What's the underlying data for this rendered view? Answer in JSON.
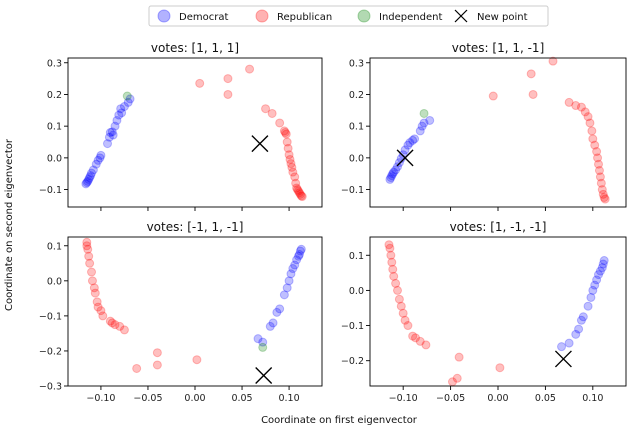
{
  "figure": {
    "xlabel": "Coordinate on first eigenvector",
    "ylabel": "Coordinate on second eigenvector",
    "legend": [
      {
        "name": "Democrat",
        "color": "#0000ff",
        "marker": "circle"
      },
      {
        "name": "Republican",
        "color": "#ff0000",
        "marker": "circle"
      },
      {
        "name": "Independent",
        "color": "#008000",
        "marker": "circle"
      },
      {
        "name": "New point",
        "color": "#000000",
        "marker": "x"
      }
    ],
    "legend_position": "top-center"
  },
  "chart_data": [
    {
      "type": "scatter",
      "title": "votes: [1, 1, 1]",
      "xlim": [
        -0.135,
        0.135
      ],
      "ylim": [
        -0.155,
        0.315
      ],
      "xticks": [],
      "yticks": [
        -0.1,
        0.0,
        0.1,
        0.2,
        0.3
      ],
      "ytick_labels": [
        "−0.1",
        "0.0",
        "0.1",
        "0.2",
        "0.3"
      ],
      "grid": false,
      "series": [
        {
          "name": "Democrat",
          "color": "#0000ff",
          "points": [
            [
              -0.116,
              -0.082
            ],
            [
              -0.115,
              -0.078
            ],
            [
              -0.114,
              -0.074
            ],
            [
              -0.113,
              -0.068
            ],
            [
              -0.112,
              -0.062
            ],
            [
              -0.111,
              -0.056
            ],
            [
              -0.11,
              -0.048
            ],
            [
              -0.108,
              -0.038
            ],
            [
              -0.105,
              -0.02
            ],
            [
              -0.103,
              -0.008
            ],
            [
              -0.101,
              0.0
            ],
            [
              -0.1,
              0.008
            ],
            [
              -0.093,
              0.045
            ],
            [
              -0.091,
              0.065
            ],
            [
              -0.09,
              0.08
            ],
            [
              -0.088,
              0.082
            ],
            [
              -0.087,
              0.072
            ],
            [
              -0.085,
              0.1
            ],
            [
              -0.083,
              0.118
            ],
            [
              -0.081,
              0.135
            ],
            [
              -0.079,
              0.155
            ],
            [
              -0.078,
              0.142
            ],
            [
              -0.075,
              0.162
            ],
            [
              -0.071,
              0.175
            ],
            [
              -0.069,
              0.186
            ]
          ]
        },
        {
          "name": "Republican",
          "color": "#ff0000",
          "points": [
            [
              0.005,
              0.235
            ],
            [
              0.035,
              0.25
            ],
            [
              0.035,
              0.2
            ],
            [
              0.058,
              0.28
            ],
            [
              0.075,
              0.155
            ],
            [
              0.082,
              0.14
            ],
            [
              0.09,
              0.11
            ],
            [
              0.095,
              0.085
            ],
            [
              0.096,
              0.08
            ],
            [
              0.097,
              0.075
            ],
            [
              0.098,
              0.05
            ],
            [
              0.099,
              0.03
            ],
            [
              0.1,
              0.01
            ],
            [
              0.101,
              -0.005
            ],
            [
              0.102,
              -0.018
            ],
            [
              0.103,
              -0.03
            ],
            [
              0.104,
              -0.045
            ],
            [
              0.106,
              -0.06
            ],
            [
              0.107,
              -0.08
            ],
            [
              0.108,
              -0.095
            ],
            [
              0.109,
              -0.1
            ],
            [
              0.11,
              -0.105
            ],
            [
              0.111,
              -0.11
            ],
            [
              0.112,
              -0.115
            ],
            [
              0.113,
              -0.12
            ],
            [
              0.114,
              -0.122
            ]
          ]
        },
        {
          "name": "Independent",
          "color": "#008000",
          "points": [
            [
              -0.072,
              0.195
            ]
          ]
        },
        {
          "name": "New point",
          "color": "#000000",
          "marker": "x",
          "points": [
            [
              0.069,
              0.045
            ]
          ]
        }
      ]
    },
    {
      "type": "scatter",
      "title": "votes: [1, 1, -1]",
      "xlim": [
        -0.135,
        0.135
      ],
      "ylim": [
        -0.155,
        0.315
      ],
      "xticks": [],
      "yticks": [
        -0.1,
        0.0,
        0.1,
        0.2,
        0.3
      ],
      "ytick_labels": [
        "−0.1",
        "0.0",
        "0.1",
        "0.2",
        "0.3"
      ],
      "grid": false,
      "series": [
        {
          "name": "Democrat",
          "color": "#0000ff",
          "points": [
            [
              -0.114,
              -0.068
            ],
            [
              -0.113,
              -0.062
            ],
            [
              -0.112,
              -0.056
            ],
            [
              -0.111,
              -0.05
            ],
            [
              -0.11,
              -0.045
            ],
            [
              -0.108,
              -0.038
            ],
            [
              -0.106,
              -0.028
            ],
            [
              -0.104,
              -0.015
            ],
            [
              -0.102,
              -0.002
            ],
            [
              -0.1,
              0.01
            ],
            [
              -0.098,
              0.025
            ],
            [
              -0.095,
              0.04
            ],
            [
              -0.093,
              0.048
            ],
            [
              -0.09,
              0.055
            ],
            [
              -0.088,
              0.06
            ],
            [
              -0.082,
              0.085
            ],
            [
              -0.08,
              0.1
            ],
            [
              -0.078,
              0.11
            ],
            [
              -0.072,
              0.118
            ]
          ]
        },
        {
          "name": "Republican",
          "color": "#ff0000",
          "points": [
            [
              -0.005,
              0.195
            ],
            [
              0.035,
              0.265
            ],
            [
              0.037,
              0.2
            ],
            [
              0.058,
              0.305
            ],
            [
              0.075,
              0.175
            ],
            [
              0.082,
              0.165
            ],
            [
              0.088,
              0.16
            ],
            [
              0.092,
              0.145
            ],
            [
              0.095,
              0.13
            ],
            [
              0.097,
              0.11
            ],
            [
              0.099,
              0.085
            ],
            [
              0.1,
              0.06
            ],
            [
              0.102,
              0.04
            ],
            [
              0.104,
              0.02
            ],
            [
              0.105,
              0.0
            ],
            [
              0.106,
              -0.02
            ],
            [
              0.107,
              -0.04
            ],
            [
              0.108,
              -0.06
            ],
            [
              0.109,
              -0.08
            ],
            [
              0.11,
              -0.1
            ],
            [
              0.111,
              -0.115
            ],
            [
              0.112,
              -0.125
            ],
            [
              0.113,
              -0.13
            ]
          ]
        },
        {
          "name": "Independent",
          "color": "#008000",
          "points": [
            [
              -0.078,
              0.14
            ]
          ]
        },
        {
          "name": "New point",
          "color": "#000000",
          "marker": "x",
          "points": [
            [
              -0.098,
              0.0
            ]
          ]
        }
      ]
    },
    {
      "type": "scatter",
      "title": "votes: [-1, 1, -1]",
      "xlim": [
        -0.135,
        0.135
      ],
      "ylim": [
        -0.3,
        0.125
      ],
      "xticks": [
        -0.1,
        -0.05,
        0.0,
        0.05,
        0.1
      ],
      "xtick_labels": [
        "−0.10",
        "−0.05",
        "0.00",
        "0.05",
        "0.10"
      ],
      "yticks": [
        -0.3,
        -0.2,
        -0.1,
        0.0,
        0.1
      ],
      "ytick_labels": [
        "−0.3",
        "−0.2",
        "−0.1",
        "0.0",
        "0.1"
      ],
      "grid": false,
      "series": [
        {
          "name": "Democrat",
          "color": "#0000ff",
          "points": [
            [
              0.067,
              -0.165
            ],
            [
              0.072,
              -0.175
            ],
            [
              0.08,
              -0.13
            ],
            [
              0.083,
              -0.12
            ],
            [
              0.087,
              -0.09
            ],
            [
              0.09,
              -0.08
            ],
            [
              0.095,
              -0.04
            ],
            [
              0.098,
              -0.02
            ],
            [
              0.1,
              0.0
            ],
            [
              0.102,
              0.02
            ],
            [
              0.104,
              0.035
            ],
            [
              0.106,
              0.045
            ],
            [
              0.108,
              0.06
            ],
            [
              0.11,
              0.07
            ],
            [
              0.111,
              0.075
            ],
            [
              0.112,
              0.085
            ],
            [
              0.113,
              0.09
            ]
          ]
        },
        {
          "name": "Republican",
          "color": "#ff0000",
          "points": [
            [
              -0.115,
              0.11
            ],
            [
              -0.115,
              0.1
            ],
            [
              -0.114,
              0.09
            ],
            [
              -0.113,
              0.07
            ],
            [
              -0.112,
              0.05
            ],
            [
              -0.11,
              0.025
            ],
            [
              -0.109,
              0.0
            ],
            [
              -0.107,
              -0.02
            ],
            [
              -0.106,
              -0.035
            ],
            [
              -0.104,
              -0.06
            ],
            [
              -0.103,
              -0.075
            ],
            [
              -0.1,
              -0.085
            ],
            [
              -0.098,
              -0.1
            ],
            [
              -0.09,
              -0.115
            ],
            [
              -0.088,
              -0.12
            ],
            [
              -0.085,
              -0.125
            ],
            [
              -0.08,
              -0.13
            ],
            [
              -0.075,
              -0.14
            ],
            [
              -0.062,
              -0.25
            ],
            [
              -0.04,
              -0.24
            ],
            [
              -0.04,
              -0.205
            ],
            [
              0.002,
              -0.225
            ]
          ]
        },
        {
          "name": "Independent",
          "color": "#008000",
          "points": [
            [
              0.072,
              -0.19
            ]
          ]
        },
        {
          "name": "New point",
          "color": "#000000",
          "marker": "x",
          "points": [
            [
              0.073,
              -0.27
            ]
          ]
        }
      ]
    },
    {
      "type": "scatter",
      "title": "votes: [1, -1, -1]",
      "xlim": [
        -0.135,
        0.135
      ],
      "ylim": [
        -0.272,
        0.152
      ],
      "xticks": [
        -0.1,
        -0.05,
        0.0,
        0.05,
        0.1
      ],
      "xtick_labels": [
        "−0.10",
        "−0.05",
        "0.00",
        "0.05",
        "0.10"
      ],
      "yticks": [
        -0.2,
        -0.1,
        0.0,
        0.1
      ],
      "ytick_labels": [
        "−0.2",
        "−0.1",
        "0.0",
        "0.1"
      ],
      "grid": false,
      "series": [
        {
          "name": "Democrat",
          "color": "#0000ff",
          "points": [
            [
              0.067,
              -0.16
            ],
            [
              0.075,
              -0.15
            ],
            [
              0.082,
              -0.125
            ],
            [
              0.085,
              -0.11
            ],
            [
              0.088,
              -0.085
            ],
            [
              0.09,
              -0.075
            ],
            [
              0.095,
              -0.045
            ],
            [
              0.098,
              -0.02
            ],
            [
              0.1,
              0.0
            ],
            [
              0.102,
              0.015
            ],
            [
              0.104,
              0.03
            ],
            [
              0.106,
              0.045
            ],
            [
              0.108,
              0.055
            ],
            [
              0.11,
              0.065
            ],
            [
              0.111,
              0.075
            ],
            [
              0.112,
              0.085
            ]
          ]
        },
        {
          "name": "Republican",
          "color": "#ff0000",
          "points": [
            [
              -0.115,
              0.13
            ],
            [
              -0.114,
              0.12
            ],
            [
              -0.113,
              0.1
            ],
            [
              -0.112,
              0.08
            ],
            [
              -0.111,
              0.06
            ],
            [
              -0.11,
              0.04
            ],
            [
              -0.108,
              0.02
            ],
            [
              -0.106,
              0.0
            ],
            [
              -0.104,
              -0.025
            ],
            [
              -0.102,
              -0.045
            ],
            [
              -0.1,
              -0.065
            ],
            [
              -0.098,
              -0.085
            ],
            [
              -0.095,
              -0.1
            ],
            [
              -0.09,
              -0.13
            ],
            [
              -0.087,
              -0.135
            ],
            [
              -0.082,
              -0.145
            ],
            [
              -0.076,
              -0.155
            ],
            [
              -0.048,
              -0.26
            ],
            [
              -0.043,
              -0.25
            ],
            [
              -0.041,
              -0.19
            ],
            [
              0.002,
              -0.22
            ]
          ]
        },
        {
          "name": "New point",
          "color": "#000000",
          "marker": "x",
          "points": [
            [
              0.069,
              -0.195
            ]
          ]
        }
      ]
    }
  ]
}
